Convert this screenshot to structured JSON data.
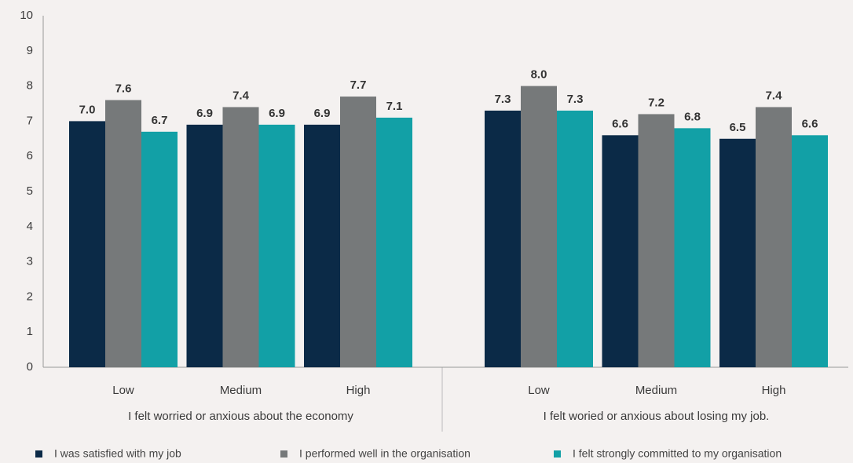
{
  "chart_data": {
    "type": "bar",
    "categories": [
      "Low",
      "Medium",
      "High",
      "Low",
      "Medium",
      "High"
    ],
    "group_labels": [
      "I felt worried or anxious about the economy",
      "I felt woried or anxious about losing my job."
    ],
    "series": [
      {
        "name": "I was satisfied with my job",
        "color": "#0b2a47",
        "values": [
          7.0,
          6.9,
          6.9,
          7.3,
          6.6,
          6.5
        ],
        "value_labels": [
          "7.0",
          "6.9",
          "6.9",
          "7.3",
          "6.6",
          "6.5"
        ]
      },
      {
        "name": "I performed well in the organisation",
        "color": "#76797a",
        "values": [
          7.6,
          7.4,
          7.7,
          8.0,
          7.2,
          7.4
        ],
        "value_labels": [
          "7.6",
          "7.4",
          "7.7",
          "8.0",
          "7.2",
          "7.4"
        ]
      },
      {
        "name": "I felt strongly committed to my organisation",
        "color": "#12a0a6",
        "values": [
          6.7,
          6.9,
          7.1,
          7.3,
          6.8,
          6.6
        ],
        "value_labels": [
          "6.7",
          "6.9",
          "7.1",
          "7.3",
          "6.8",
          "6.6"
        ]
      }
    ],
    "ylim": [
      0,
      10
    ],
    "yticks": [
      0,
      1,
      2,
      3,
      4,
      5,
      6,
      7,
      8,
      9,
      10
    ]
  }
}
